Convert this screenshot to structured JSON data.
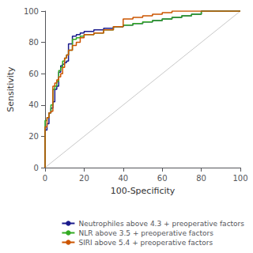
{
  "chart_data": {
    "type": "line",
    "xlabel": "100-Specificity",
    "ylabel": "Sensitivity",
    "xlim": [
      0,
      100
    ],
    "ylim": [
      0,
      100
    ],
    "xticks": [
      0,
      20,
      40,
      60,
      80,
      100
    ],
    "yticks": [
      0,
      20,
      40,
      60,
      80,
      100
    ],
    "grid": false,
    "legend": "lower right",
    "series": [
      {
        "color": "#c8c8c8",
        "x": [
          0,
          100
        ],
        "y": [
          0,
          100
        ]
      },
      {
        "name": "Neutrophiles above 4.3 + preoperative factors",
        "color": "#1a1a8c",
        "x": [
          0,
          0,
          1,
          1,
          2,
          2,
          3,
          3,
          4,
          4,
          5,
          5,
          6,
          6,
          7,
          7,
          8,
          8,
          9,
          9,
          10,
          10,
          11,
          11,
          12,
          12,
          14,
          14,
          16,
          16,
          18,
          18,
          20,
          20,
          25,
          25,
          30,
          30,
          35,
          35,
          40,
          40,
          45,
          45,
          50,
          50,
          55,
          55,
          60,
          60,
          65,
          65,
          70,
          70,
          75,
          75,
          80,
          80,
          100
        ],
        "y": [
          0,
          24,
          24,
          28,
          28,
          35,
          35,
          38,
          38,
          42,
          42,
          50,
          50,
          52,
          52,
          61,
          61,
          65,
          65,
          66,
          66,
          67,
          67,
          68,
          68,
          79,
          79,
          84,
          84,
          85,
          85,
          86,
          86,
          87,
          87,
          88,
          88,
          89,
          89,
          90,
          90,
          91,
          91,
          92,
          92,
          93,
          93,
          94,
          94,
          95,
          95,
          96,
          96,
          97,
          97,
          98,
          98,
          100,
          100
        ]
      },
      {
        "name": "NLR above 3.5 + preoperative factors",
        "color": "#33aa22",
        "x": [
          0,
          0,
          1,
          1,
          2,
          2,
          3,
          3,
          4,
          4,
          5,
          5,
          6,
          6,
          7,
          7,
          8,
          8,
          9,
          9,
          10,
          10,
          11,
          11,
          12,
          12,
          14,
          14,
          16,
          16,
          18,
          18,
          20,
          20,
          25,
          25,
          30,
          30,
          35,
          35,
          40,
          40,
          45,
          45,
          50,
          50,
          55,
          55,
          60,
          60,
          65,
          65,
          70,
          70,
          75,
          75,
          80,
          80,
          100
        ],
        "y": [
          0,
          30,
          30,
          32,
          32,
          35,
          35,
          40,
          40,
          50,
          50,
          52,
          52,
          55,
          55,
          62,
          62,
          64,
          64,
          68,
          68,
          70,
          70,
          72,
          72,
          75,
          75,
          82,
          82,
          83,
          83,
          84,
          84,
          85,
          85,
          86,
          86,
          88,
          88,
          90,
          90,
          91,
          91,
          92,
          92,
          93,
          93,
          94,
          94,
          95,
          95,
          96,
          96,
          97,
          97,
          98,
          98,
          100,
          100
        ]
      },
      {
        "name": "SIRI above 5.4 + preoperative factors",
        "color": "#cc5500",
        "x": [
          0,
          0,
          1,
          1,
          2,
          2,
          3,
          3,
          4,
          4,
          5,
          5,
          6,
          6,
          7,
          7,
          8,
          8,
          9,
          9,
          10,
          10,
          11,
          11,
          12,
          12,
          14,
          14,
          16,
          16,
          18,
          18,
          20,
          20,
          25,
          25,
          30,
          30,
          35,
          35,
          40,
          40,
          45,
          45,
          50,
          50,
          55,
          55,
          60,
          60,
          65,
          65,
          70,
          70,
          75,
          75,
          80,
          80,
          100
        ],
        "y": [
          0,
          26,
          26,
          32,
          32,
          35,
          35,
          36,
          36,
          52,
          52,
          54,
          54,
          56,
          56,
          58,
          58,
          60,
          60,
          64,
          64,
          70,
          70,
          72,
          72,
          75,
          75,
          78,
          78,
          80,
          80,
          83,
          83,
          85,
          85,
          86,
          86,
          88,
          88,
          90,
          90,
          95,
          95,
          96,
          96,
          97,
          97,
          98,
          98,
          99,
          99,
          100,
          100,
          100,
          100,
          100,
          100,
          100,
          100
        ]
      }
    ]
  }
}
